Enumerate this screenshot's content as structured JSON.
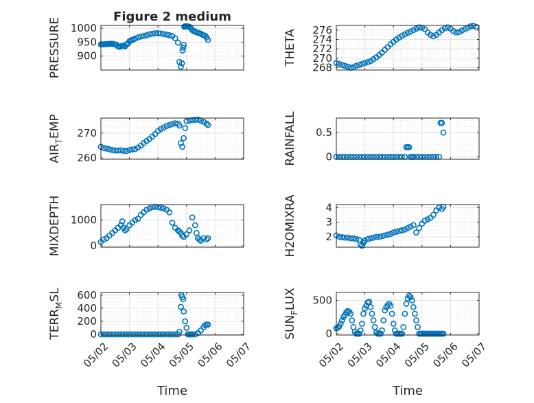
{
  "figure_title": "Figure 2 medium",
  "xlabel": "Time",
  "x_tick_labels": [
    "05/02",
    "05/03",
    "05/04",
    "05/05",
    "05/06",
    "05/07"
  ],
  "marker_color": "#0072BD",
  "chart_data": [
    {
      "type": "scatter",
      "title": "Figure 2 medium",
      "ylabel": "PRESSURE",
      "xlim": [
        0,
        5
      ],
      "ylim": [
        850,
        1010
      ],
      "yticks": [
        900,
        950,
        1000
      ],
      "grid": true,
      "x": [
        0,
        0.05,
        0.1,
        0.15,
        0.2,
        0.25,
        0.3,
        0.35,
        0.4,
        0.45,
        0.5,
        0.55,
        0.6,
        0.65,
        0.7,
        0.75,
        0.8,
        0.85,
        0.9,
        0.95,
        1,
        1.05,
        1.1,
        1.15,
        1.2,
        1.3,
        1.4,
        1.5,
        1.6,
        1.7,
        1.8,
        1.9,
        2.0,
        2.1,
        2.2,
        2.3,
        2.4,
        2.5,
        2.6,
        2.7,
        2.75,
        2.8,
        2.84,
        2.86,
        2.88,
        2.9,
        2.92,
        2.94,
        2.96,
        2.98,
        3.02,
        3.05,
        3.1,
        3.15,
        3.2,
        3.25,
        3.3,
        3.35,
        3.4,
        3.45,
        3.5,
        3.55,
        3.6,
        3.65,
        3.7,
        3.75
      ],
      "y": [
        942,
        942,
        942,
        943,
        943,
        943,
        944,
        944,
        944,
        943,
        942,
        940,
        935,
        933,
        935,
        937,
        936,
        935,
        942,
        945,
        953,
        956,
        958,
        960,
        963,
        967,
        970,
        972,
        975,
        978,
        980,
        982,
        982,
        981,
        979,
        977,
        975,
        972,
        964,
        948,
        879,
        862,
        874,
        920,
        930,
        940,
        1005,
        1007,
        1007,
        1007,
        1007,
        1006,
        1005,
        1000,
        993,
        990,
        988,
        985,
        984,
        982,
        980,
        977,
        975,
        973,
        967,
        958
      ]
    },
    {
      "type": "scatter",
      "ylabel": "THETA",
      "xlim": [
        0,
        5
      ],
      "ylim": [
        267.5,
        277
      ],
      "yticks": [
        268,
        270,
        272,
        274,
        276
      ],
      "grid": true,
      "x": [
        0,
        0.1,
        0.2,
        0.3,
        0.4,
        0.5,
        0.6,
        0.7,
        0.8,
        0.9,
        1.0,
        1.1,
        1.2,
        1.3,
        1.4,
        1.5,
        1.6,
        1.7,
        1.8,
        1.9,
        2.0,
        2.1,
        2.2,
        2.3,
        2.4,
        2.5,
        2.6,
        2.7,
        2.8,
        2.9,
        3.0,
        3.1,
        3.2,
        3.3,
        3.4,
        3.5,
        3.6,
        3.7,
        3.8,
        3.9,
        4.0,
        4.1,
        4.2,
        4.3,
        4.4,
        4.5,
        4.6,
        4.7,
        4.8,
        4.9
      ],
      "y": [
        269,
        268.8,
        268.6,
        268.4,
        268.2,
        268,
        268.1,
        268.4,
        268.6,
        268.8,
        269,
        269.2,
        269.4,
        269.8,
        270.2,
        270.7,
        271.2,
        271.8,
        272.4,
        273,
        273.5,
        274,
        274.4,
        274.8,
        275.1,
        275.4,
        275.7,
        276,
        276.3,
        276.6,
        276.5,
        276.2,
        275.5,
        275,
        274.7,
        275,
        275.5,
        276,
        276.4,
        276.6,
        276.3,
        275.8,
        275.5,
        275.6,
        275.9,
        276.2,
        276.5,
        276.8,
        276.9,
        276.7
      ]
    },
    {
      "type": "scatter",
      "ylabel": "AIR_TEMP",
      "xlim": [
        0,
        5
      ],
      "ylim": [
        259.5,
        276
      ],
      "yticks": [
        260,
        270
      ],
      "grid": true,
      "x": [
        0,
        0.1,
        0.2,
        0.3,
        0.4,
        0.5,
        0.6,
        0.7,
        0.8,
        0.9,
        1.0,
        1.1,
        1.2,
        1.3,
        1.4,
        1.5,
        1.6,
        1.7,
        1.8,
        1.9,
        2.0,
        2.1,
        2.2,
        2.3,
        2.4,
        2.5,
        2.6,
        2.7,
        2.75,
        2.8,
        2.85,
        2.9,
        2.95,
        3.0,
        3.1,
        3.2,
        3.3,
        3.4,
        3.5,
        3.6,
        3.7,
        3.75
      ],
      "y": [
        264.5,
        264,
        263.8,
        263.5,
        263.2,
        263,
        263,
        263.1,
        262.9,
        262.8,
        263.2,
        263.4,
        263.6,
        264.2,
        265,
        266,
        266.8,
        267.6,
        268.6,
        269.6,
        270.8,
        271.6,
        272.2,
        272.8,
        273.2,
        273.6,
        273.9,
        273.8,
        273,
        266,
        264.5,
        268,
        272,
        274.8,
        275,
        275.2,
        275.3,
        275.4,
        275,
        274.5,
        273.8,
        273.2
      ]
    },
    {
      "type": "scatter",
      "ylabel": "RAINFALL",
      "xlim": [
        0,
        5
      ],
      "ylim": [
        -0.05,
        0.8
      ],
      "yticks": [
        0,
        0.5
      ],
      "grid": true,
      "x": [
        0,
        0.1,
        0.2,
        0.3,
        0.4,
        0.5,
        0.6,
        0.7,
        0.8,
        0.9,
        1.0,
        1.1,
        1.2,
        1.3,
        1.4,
        1.5,
        1.6,
        1.7,
        1.8,
        1.9,
        2.0,
        2.1,
        2.2,
        2.3,
        2.4,
        2.45,
        2.5,
        2.55,
        2.6,
        2.65,
        2.7,
        2.8,
        2.9,
        3.0,
        3.1,
        3.2,
        3.3,
        3.4,
        3.5,
        3.6,
        3.65,
        3.7,
        3.75
      ],
      "y": [
        0,
        0,
        0,
        0,
        0,
        0,
        0,
        0,
        0,
        0,
        0,
        0,
        0,
        0,
        0,
        0,
        0,
        0,
        0,
        0,
        0,
        0,
        0,
        0,
        0,
        0.2,
        0.2,
        0.2,
        0,
        0,
        0,
        0,
        0,
        0,
        0,
        0,
        0,
        0,
        0,
        0,
        0.7,
        0.7,
        0.5
      ]
    },
    {
      "type": "scatter",
      "ylabel": "MIXDEPTH",
      "xlim": [
        0,
        5
      ],
      "ylim": [
        -50,
        1600
      ],
      "yticks": [
        0,
        1000
      ],
      "grid": true,
      "x": [
        0,
        0.1,
        0.2,
        0.3,
        0.4,
        0.5,
        0.6,
        0.7,
        0.75,
        0.8,
        0.85,
        0.9,
        1.0,
        1.1,
        1.2,
        1.3,
        1.4,
        1.5,
        1.6,
        1.7,
        1.8,
        1.9,
        2.0,
        2.1,
        2.2,
        2.3,
        2.4,
        2.5,
        2.6,
        2.7,
        2.75,
        2.8,
        2.85,
        2.9,
        3.0,
        3.1,
        3.2,
        3.3,
        3.35,
        3.4,
        3.45,
        3.5,
        3.6,
        3.7,
        3.75
      ],
      "y": [
        150,
        250,
        300,
        400,
        500,
        600,
        700,
        800,
        950,
        700,
        600,
        650,
        800,
        900,
        1000,
        1050,
        1200,
        1300,
        1400,
        1450,
        1500,
        1520,
        1500,
        1480,
        1450,
        1400,
        1300,
        900,
        700,
        600,
        550,
        500,
        400,
        350,
        450,
        600,
        1100,
        800,
        500,
        300,
        250,
        200,
        300,
        250,
        300
      ]
    },
    {
      "type": "scatter",
      "ylabel": "H2OMIXRA",
      "xlim": [
        0,
        5
      ],
      "ylim": [
        1.3,
        4.2
      ],
      "yticks": [
        2,
        3,
        4
      ],
      "grid": true,
      "x": [
        0,
        0.1,
        0.2,
        0.3,
        0.4,
        0.5,
        0.6,
        0.7,
        0.8,
        0.85,
        0.9,
        0.95,
        1.0,
        1.1,
        1.2,
        1.3,
        1.4,
        1.5,
        1.6,
        1.7,
        1.8,
        1.9,
        2.0,
        2.1,
        2.2,
        2.3,
        2.4,
        2.5,
        2.6,
        2.7,
        2.8,
        2.9,
        3.0,
        3.1,
        3.2,
        3.3,
        3.4,
        3.5,
        3.6,
        3.7,
        3.75
      ],
      "y": [
        2.1,
        2.0,
        1.98,
        1.95,
        1.95,
        1.9,
        1.9,
        1.85,
        1.8,
        1.5,
        1.4,
        1.6,
        1.75,
        1.85,
        1.9,
        1.95,
        2.0,
        2.0,
        2.05,
        2.1,
        2.15,
        2.2,
        2.3,
        2.35,
        2.4,
        2.45,
        2.5,
        2.6,
        2.7,
        2.8,
        2.3,
        2.6,
        2.9,
        3.1,
        3.2,
        3.3,
        3.5,
        3.8,
        4.0,
        3.9,
        4.05
      ]
    },
    {
      "type": "scatter",
      "ylabel": "TERR_MSL",
      "xlim": [
        0,
        5
      ],
      "ylim": [
        -10,
        640
      ],
      "yticks": [
        0,
        200,
        400,
        600
      ],
      "grid": true,
      "x": [
        0,
        0.1,
        0.2,
        0.3,
        0.4,
        0.5,
        0.6,
        0.7,
        0.8,
        0.9,
        1.0,
        1.1,
        1.2,
        1.3,
        1.4,
        1.5,
        1.6,
        1.7,
        1.8,
        1.9,
        2.0,
        2.1,
        2.2,
        2.3,
        2.4,
        2.5,
        2.6,
        2.7,
        2.75,
        2.8,
        2.82,
        2.85,
        2.88,
        2.9,
        2.95,
        3.0,
        3.05,
        3.1,
        3.15,
        3.2,
        3.3,
        3.4,
        3.5,
        3.6,
        3.65,
        3.7,
        3.75
      ],
      "y": [
        0,
        0,
        0,
        0,
        0,
        0,
        0,
        0,
        0,
        0,
        0,
        0,
        0,
        0,
        0,
        0,
        0,
        0,
        0,
        0,
        0,
        0,
        0,
        0,
        0,
        0,
        0,
        0,
        40,
        420,
        600,
        570,
        540,
        350,
        200,
        100,
        0,
        0,
        0,
        0,
        0,
        20,
        60,
        110,
        140,
        150,
        150
      ]
    },
    {
      "type": "scatter",
      "ylabel": "SUN_FLUX",
      "xlim": [
        0,
        5
      ],
      "ylim": [
        -20,
        620
      ],
      "yticks": [
        0,
        500
      ],
      "grid": true,
      "x": [
        0,
        0.05,
        0.1,
        0.15,
        0.2,
        0.25,
        0.3,
        0.35,
        0.4,
        0.45,
        0.5,
        0.55,
        0.6,
        0.65,
        0.7,
        0.75,
        0.8,
        0.85,
        0.9,
        0.95,
        1.0,
        1.05,
        1.1,
        1.15,
        1.2,
        1.25,
        1.3,
        1.35,
        1.4,
        1.45,
        1.5,
        1.55,
        1.6,
        1.65,
        1.7,
        1.75,
        1.8,
        1.85,
        1.9,
        1.95,
        2.0,
        2.05,
        2.1,
        2.15,
        2.2,
        2.25,
        2.3,
        2.35,
        2.4,
        2.45,
        2.5,
        2.55,
        2.6,
        2.65,
        2.7,
        2.75,
        2.8,
        2.85,
        2.9,
        2.95,
        3.0,
        3.05,
        3.1,
        3.15,
        3.2,
        3.25,
        3.3,
        3.35,
        3.4,
        3.45,
        3.5,
        3.55,
        3.6,
        3.65,
        3.7,
        3.75
      ],
      "y": [
        80,
        90,
        110,
        150,
        200,
        250,
        280,
        320,
        340,
        330,
        300,
        200,
        100,
        30,
        0,
        0,
        0,
        50,
        150,
        300,
        380,
        420,
        470,
        480,
        400,
        300,
        200,
        100,
        20,
        0,
        0,
        0,
        50,
        200,
        350,
        400,
        430,
        450,
        420,
        300,
        150,
        50,
        0,
        0,
        0,
        0,
        0,
        100,
        300,
        450,
        530,
        570,
        550,
        500,
        400,
        300,
        200,
        100,
        0,
        0,
        0,
        0,
        0,
        0,
        0,
        0,
        0,
        0,
        0,
        0,
        0,
        0,
        0,
        0,
        0,
        0
      ]
    }
  ]
}
